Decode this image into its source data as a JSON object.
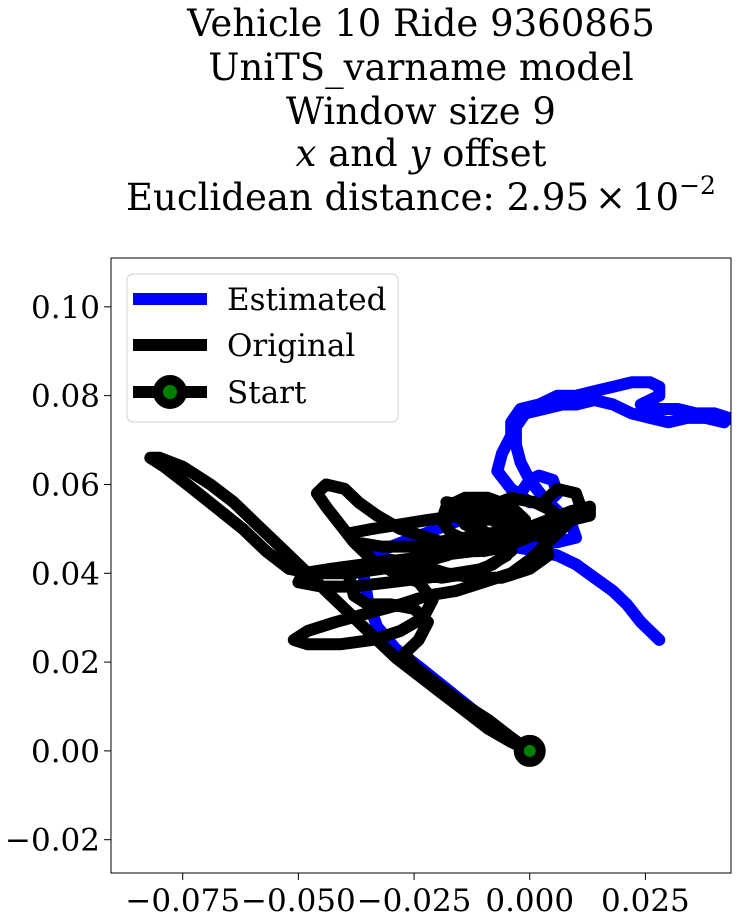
{
  "chart_data": {
    "type": "line",
    "title_lines": [
      "Vehicle 10 Ride 9360865",
      "UniTS_varname model",
      "Window size 9",
      "x and y offset",
      "Euclidean distance: 2.95 × 10^-2"
    ],
    "title": {
      "line1": "Vehicle 10 Ride 9360865",
      "line2": "UniTS_varname model",
      "line3": "Window size 9",
      "line4_x": "x",
      "line4_and": " and ",
      "line4_y": "y",
      "line4_rest": " offset",
      "line5_prefix": "Euclidean distance: 2.95",
      "line5_times": "×",
      "line5_base": "10",
      "line5_exp": "−2"
    },
    "xlabel": "",
    "ylabel": "",
    "xlim": [
      -0.0905,
      0.0435
    ],
    "ylim": [
      -0.0275,
      0.111
    ],
    "xticks": [
      -0.075,
      -0.05,
      -0.025,
      0.0,
      0.025
    ],
    "xtick_labels": [
      "−0.075",
      "−0.050",
      "−0.025",
      "0.000",
      "0.025"
    ],
    "yticks": [
      -0.02,
      0.0,
      0.02,
      0.04,
      0.06,
      0.08,
      0.1
    ],
    "ytick_labels": [
      "−0.02",
      "0.00",
      "0.02",
      "0.04",
      "0.06",
      "0.08",
      "0.10"
    ],
    "grid": false,
    "legend_position": "top-left",
    "legend": [
      "Estimated",
      "Original",
      "Start"
    ],
    "colors": {
      "estimated": "#0000ff",
      "original": "#000000",
      "start_fill": "#008000",
      "start_edge": "#000000"
    },
    "series": [
      {
        "name": "Estimated",
        "points": [
          [
            0.0,
            0.0
          ],
          [
            -0.006,
            0.004
          ],
          [
            -0.012,
            0.009
          ],
          [
            -0.018,
            0.014
          ],
          [
            -0.024,
            0.019
          ],
          [
            -0.029,
            0.023
          ],
          [
            -0.033,
            0.028
          ],
          [
            -0.035,
            0.034
          ],
          [
            -0.036,
            0.04
          ],
          [
            -0.034,
            0.044
          ],
          [
            -0.03,
            0.046
          ],
          [
            -0.025,
            0.048
          ],
          [
            -0.02,
            0.05
          ],
          [
            -0.015,
            0.052
          ],
          [
            -0.01,
            0.053
          ],
          [
            -0.006,
            0.055
          ],
          [
            -0.002,
            0.058
          ],
          [
            0.0,
            0.061
          ],
          [
            0.002,
            0.062
          ],
          [
            0.005,
            0.061
          ],
          [
            0.006,
            0.058
          ],
          [
            0.004,
            0.056
          ],
          [
            0.0,
            0.056
          ],
          [
            -0.004,
            0.059
          ],
          [
            -0.007,
            0.063
          ],
          [
            -0.006,
            0.067
          ],
          [
            -0.004,
            0.071
          ],
          [
            -0.004,
            0.074
          ],
          [
            -0.002,
            0.077
          ],
          [
            0.002,
            0.078
          ],
          [
            0.006,
            0.08
          ],
          [
            0.01,
            0.08
          ],
          [
            0.014,
            0.081
          ],
          [
            0.018,
            0.082
          ],
          [
            0.022,
            0.083
          ],
          [
            0.026,
            0.083
          ],
          [
            0.028,
            0.082
          ],
          [
            0.028,
            0.08
          ],
          [
            0.026,
            0.079
          ],
          [
            0.024,
            0.078
          ],
          [
            0.028,
            0.077
          ],
          [
            0.032,
            0.077
          ],
          [
            0.036,
            0.076
          ],
          [
            0.04,
            0.076
          ],
          [
            0.043,
            0.075
          ],
          [
            0.042,
            0.074
          ],
          [
            0.038,
            0.075
          ],
          [
            0.034,
            0.075
          ],
          [
            0.03,
            0.074
          ],
          [
            0.026,
            0.075
          ],
          [
            0.022,
            0.076
          ],
          [
            0.018,
            0.078
          ],
          [
            0.014,
            0.079
          ],
          [
            0.01,
            0.078
          ],
          [
            0.007,
            0.078
          ],
          [
            0.003,
            0.077
          ],
          [
            -0.001,
            0.076
          ],
          [
            -0.003,
            0.073
          ],
          [
            -0.003,
            0.069
          ],
          [
            -0.002,
            0.065
          ],
          [
            0.0,
            0.061
          ],
          [
            0.003,
            0.057
          ],
          [
            0.006,
            0.054
          ],
          [
            0.009,
            0.051
          ],
          [
            0.01,
            0.048
          ],
          [
            0.006,
            0.047
          ],
          [
            0.0,
            0.047
          ],
          [
            -0.004,
            0.046
          ],
          [
            0.002,
            0.045
          ],
          [
            0.006,
            0.044
          ],
          [
            0.01,
            0.042
          ],
          [
            0.014,
            0.039
          ],
          [
            0.018,
            0.036
          ],
          [
            0.021,
            0.033
          ],
          [
            0.024,
            0.029
          ],
          [
            0.028,
            0.025
          ]
        ]
      },
      {
        "name": "Original",
        "points": [
          [
            0.0,
            0.0
          ],
          [
            -0.004,
            0.003
          ],
          [
            -0.009,
            0.007
          ],
          [
            -0.015,
            0.011
          ],
          [
            -0.02,
            0.015
          ],
          [
            -0.025,
            0.019
          ],
          [
            -0.027,
            0.022
          ],
          [
            -0.024,
            0.025
          ],
          [
            -0.022,
            0.029
          ],
          [
            -0.025,
            0.032
          ],
          [
            -0.03,
            0.033
          ],
          [
            -0.035,
            0.033
          ],
          [
            -0.038,
            0.035
          ],
          [
            -0.039,
            0.039
          ],
          [
            -0.036,
            0.042
          ],
          [
            -0.03,
            0.043
          ],
          [
            -0.024,
            0.042
          ],
          [
            -0.018,
            0.04
          ],
          [
            -0.012,
            0.039
          ],
          [
            -0.006,
            0.039
          ],
          [
            0.0,
            0.041
          ],
          [
            0.004,
            0.044
          ],
          [
            0.003,
            0.048
          ],
          [
            -0.002,
            0.05
          ],
          [
            -0.008,
            0.049
          ],
          [
            -0.014,
            0.048
          ],
          [
            -0.02,
            0.047
          ],
          [
            -0.024,
            0.045
          ],
          [
            -0.026,
            0.042
          ],
          [
            -0.024,
            0.04
          ],
          [
            -0.019,
            0.039
          ],
          [
            -0.013,
            0.04
          ],
          [
            -0.008,
            0.042
          ],
          [
            -0.004,
            0.045
          ],
          [
            -0.004,
            0.049
          ],
          [
            -0.008,
            0.052
          ],
          [
            -0.015,
            0.053
          ],
          [
            -0.022,
            0.052
          ],
          [
            -0.028,
            0.051
          ],
          [
            -0.034,
            0.05
          ],
          [
            -0.039,
            0.049
          ],
          [
            -0.038,
            0.047
          ],
          [
            -0.032,
            0.046
          ],
          [
            -0.025,
            0.046
          ],
          [
            -0.018,
            0.045
          ],
          [
            -0.011,
            0.045
          ],
          [
            -0.005,
            0.046
          ],
          [
            -0.001,
            0.048
          ],
          [
            -0.002,
            0.051
          ],
          [
            -0.007,
            0.053
          ],
          [
            -0.013,
            0.055
          ],
          [
            -0.018,
            0.056
          ],
          [
            -0.016,
            0.053
          ],
          [
            -0.012,
            0.05
          ],
          [
            -0.008,
            0.047
          ],
          [
            -0.005,
            0.044
          ],
          [
            -0.01,
            0.041
          ],
          [
            -0.016,
            0.04
          ],
          [
            -0.022,
            0.039
          ],
          [
            -0.03,
            0.038
          ],
          [
            -0.038,
            0.037
          ],
          [
            -0.045,
            0.037
          ],
          [
            -0.05,
            0.038
          ],
          [
            -0.049,
            0.04
          ],
          [
            -0.043,
            0.041
          ],
          [
            -0.036,
            0.042
          ],
          [
            -0.028,
            0.043
          ],
          [
            -0.02,
            0.044
          ],
          [
            -0.012,
            0.045
          ],
          [
            -0.006,
            0.047
          ],
          [
            -0.003,
            0.05
          ],
          [
            -0.004,
            0.053
          ],
          [
            -0.008,
            0.055
          ],
          [
            -0.012,
            0.056
          ],
          [
            -0.015,
            0.054
          ],
          [
            -0.014,
            0.051
          ],
          [
            -0.01,
            0.049
          ],
          [
            -0.005,
            0.049
          ],
          [
            -0.001,
            0.05
          ],
          [
            0.004,
            0.052
          ],
          [
            0.009,
            0.054
          ],
          [
            0.013,
            0.055
          ],
          [
            0.013,
            0.053
          ],
          [
            0.009,
            0.052
          ],
          [
            0.005,
            0.053
          ],
          [
            0.003,
            0.056
          ],
          [
            0.006,
            0.059
          ],
          [
            0.01,
            0.058
          ],
          [
            0.011,
            0.055
          ],
          [
            0.008,
            0.051
          ],
          [
            0.004,
            0.047
          ],
          [
            0.0,
            0.043
          ],
          [
            -0.004,
            0.04
          ],
          [
            -0.01,
            0.038
          ],
          [
            -0.016,
            0.036
          ],
          [
            -0.022,
            0.035
          ],
          [
            -0.028,
            0.033
          ],
          [
            -0.035,
            0.031
          ],
          [
            -0.042,
            0.029
          ],
          [
            -0.048,
            0.027
          ],
          [
            -0.051,
            0.025
          ],
          [
            -0.048,
            0.024
          ],
          [
            -0.041,
            0.024
          ],
          [
            -0.034,
            0.025
          ],
          [
            -0.028,
            0.027
          ],
          [
            -0.023,
            0.03
          ],
          [
            -0.021,
            0.034
          ],
          [
            -0.024,
            0.038
          ],
          [
            -0.029,
            0.04
          ],
          [
            -0.034,
            0.043
          ],
          [
            -0.038,
            0.047
          ],
          [
            -0.041,
            0.051
          ],
          [
            -0.044,
            0.055
          ],
          [
            -0.046,
            0.058
          ],
          [
            -0.044,
            0.06
          ],
          [
            -0.04,
            0.059
          ],
          [
            -0.037,
            0.056
          ],
          [
            -0.033,
            0.053
          ],
          [
            -0.028,
            0.05
          ],
          [
            -0.022,
            0.048
          ],
          [
            -0.016,
            0.046
          ],
          [
            -0.01,
            0.045
          ],
          [
            -0.005,
            0.046
          ],
          [
            -0.002,
            0.049
          ],
          [
            -0.001,
            0.052
          ],
          [
            -0.004,
            0.055
          ],
          [
            -0.009,
            0.057
          ],
          [
            -0.014,
            0.057
          ],
          [
            -0.018,
            0.055
          ],
          [
            -0.019,
            0.052
          ],
          [
            -0.017,
            0.049
          ],
          [
            -0.013,
            0.047
          ],
          [
            -0.008,
            0.046
          ],
          [
            -0.003,
            0.047
          ],
          [
            0.002,
            0.049
          ],
          [
            0.006,
            0.051
          ],
          [
            0.005,
            0.054
          ],
          [
            0.001,
            0.056
          ],
          [
            -0.004,
            0.057
          ],
          [
            -0.009,
            0.055
          ],
          [
            -0.011,
            0.052
          ],
          [
            -0.01,
            0.049
          ],
          [
            -0.013,
            0.046
          ],
          [
            -0.018,
            0.044
          ],
          [
            -0.025,
            0.042
          ],
          [
            -0.032,
            0.041
          ],
          [
            -0.039,
            0.04
          ],
          [
            -0.047,
            0.04
          ],
          [
            -0.052,
            0.041
          ],
          [
            -0.057,
            0.045
          ],
          [
            -0.062,
            0.05
          ],
          [
            -0.068,
            0.055
          ],
          [
            -0.074,
            0.06
          ],
          [
            -0.079,
            0.064
          ],
          [
            -0.082,
            0.066
          ],
          [
            -0.08,
            0.066
          ],
          [
            -0.075,
            0.064
          ],
          [
            -0.069,
            0.06
          ],
          [
            -0.064,
            0.056
          ],
          [
            -0.059,
            0.051
          ],
          [
            -0.054,
            0.046
          ],
          [
            -0.049,
            0.041
          ],
          [
            -0.044,
            0.036
          ],
          [
            -0.039,
            0.031
          ],
          [
            -0.034,
            0.026
          ],
          [
            -0.029,
            0.021
          ],
          [
            -0.024,
            0.017
          ],
          [
            -0.019,
            0.013
          ],
          [
            -0.014,
            0.009
          ],
          [
            -0.009,
            0.005
          ],
          [
            -0.004,
            0.002
          ],
          [
            0.0,
            0.0
          ]
        ]
      }
    ],
    "start_point": [
      0.0,
      0.0
    ]
  }
}
